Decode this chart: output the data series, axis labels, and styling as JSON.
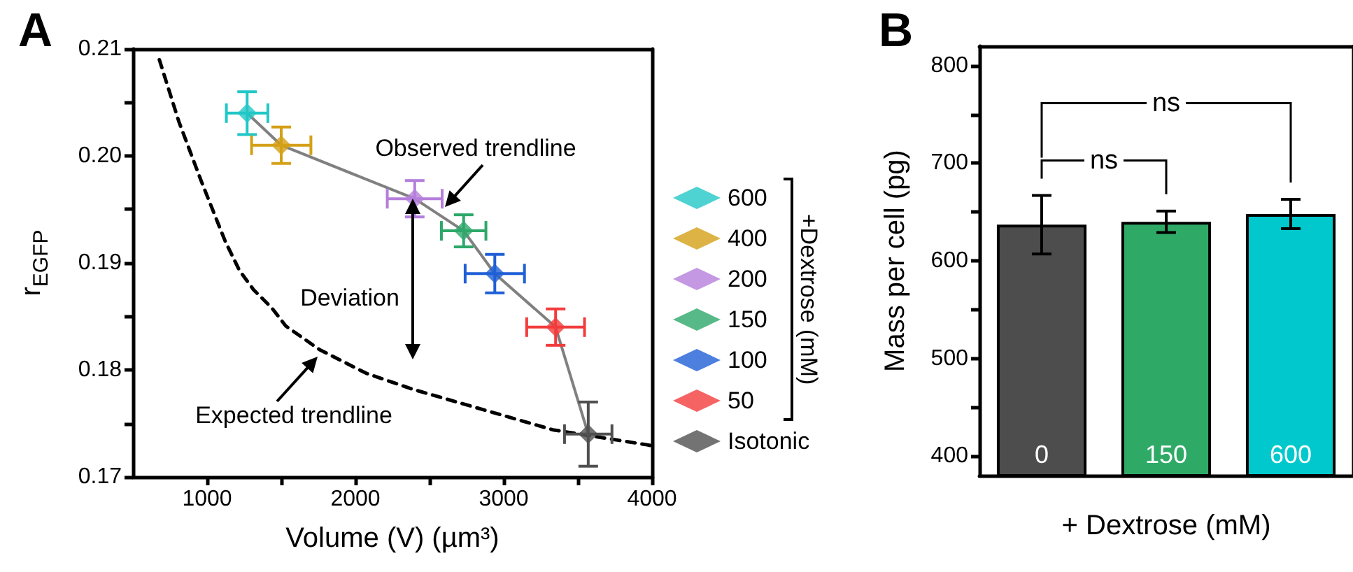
{
  "chart_data": [
    {
      "type": "scatter",
      "title": "A",
      "xlabel": "Volume (V) (µm³)",
      "ylabel": "r$_{EGFP}$",
      "legend_title": "+Dextrose (mM)",
      "legend": "right",
      "xlim": [
        500,
        4000
      ],
      "xticks": [
        1000,
        {
          "value": 1500,
          "label": null
        },
        2000,
        {
          "value": 2500,
          "label": null
        },
        3000,
        {
          "value": 3500,
          "label": null
        },
        4000
      ],
      "ylim": [
        0.17,
        0.21
      ],
      "yticks": [
        0.17,
        {
          "value": 0.175,
          "label": null
        },
        0.18,
        {
          "value": 0.185,
          "label": null
        },
        0.19,
        {
          "value": 0.195,
          "label": null
        },
        {
          "value": 0.2,
          "label": "0.20"
        },
        {
          "value": 0.205,
          "label": null
        },
        0.21
      ],
      "annotations": [
        "Observed trendline",
        "Deviation",
        "Expected trendline"
      ],
      "series": [
        {
          "name": "600",
          "marker": "diamond",
          "color": "#22c7c7",
          "x": [
            1270
          ],
          "values": [
            0.204
          ],
          "errors": [
            0.002
          ],
          "xerrors": [
            140
          ]
        },
        {
          "name": "400",
          "marker": "diamond",
          "color": "#d4a017",
          "x": [
            1500
          ],
          "values": [
            0.201
          ],
          "errors": [
            0.0017
          ],
          "xerrors": [
            200
          ]
        },
        {
          "name": "200",
          "marker": "diamond",
          "color": "#b57edc",
          "x": [
            2400
          ],
          "values": [
            0.196
          ],
          "errors": [
            0.0017
          ],
          "xerrors": [
            185
          ]
        },
        {
          "name": "150",
          "marker": "diamond",
          "color": "#2ea86a",
          "x": [
            2730
          ],
          "values": [
            0.193
          ],
          "errors": [
            0.0015
          ],
          "xerrors": [
            150
          ]
        },
        {
          "name": "100",
          "marker": "diamond",
          "color": "#1f5fd6",
          "x": [
            2940
          ],
          "values": [
            0.189
          ],
          "errors": [
            0.0018
          ],
          "xerrors": [
            200
          ]
        },
        {
          "name": "50",
          "marker": "diamond",
          "color": "#f23c3c",
          "x": [
            3350
          ],
          "values": [
            0.184
          ],
          "errors": [
            0.0017
          ],
          "xerrors": [
            195
          ]
        },
        {
          "name": "Isotonic",
          "marker": "diamond",
          "color": "#505050",
          "x": [
            3570
          ],
          "values": [
            0.174
          ],
          "errors": [
            0.003
          ],
          "xerrors": [
            160
          ]
        },
        {
          "type": "line",
          "marker": "none",
          "color": "#808080",
          "x": [
            1270,
            1500,
            2400,
            2730,
            2940,
            3350,
            3570
          ],
          "values": [
            0.204,
            0.201,
            0.196,
            0.193,
            0.189,
            0.184,
            0.174
          ]
        },
        {
          "type": "line",
          "marker": "none",
          "color": "#000000",
          "line_style": "dashed",
          "x": [
            678,
            810,
            962,
            1123,
            1218,
            1313,
            1436,
            1531,
            1758,
            2071,
            2384,
            2858,
            3332,
            3967,
            4000
          ],
          "values": [
            0.209,
            0.2032,
            0.1976,
            0.192,
            0.1893,
            0.1875,
            0.1858,
            0.1841,
            0.1819,
            0.1797,
            0.1782,
            0.1763,
            0.1744,
            0.173,
            0.1729
          ]
        }
      ]
    },
    {
      "type": "bar",
      "title": "B",
      "xlabel": "+ Dextrose (mM)",
      "ylabel": "Mass per cell (pg)",
      "categories": [
        "0",
        "150",
        "600"
      ],
      "ylim": [
        380,
        820
      ],
      "yticks": [
        400,
        {
          "value": 450,
          "label": null
        },
        500,
        {
          "value": 550,
          "label": null
        },
        600,
        {
          "value": 650,
          "label": null
        },
        700,
        {
          "value": 750,
          "label": null
        },
        800
      ],
      "annotations": [
        "ns",
        "ns"
      ],
      "values": [
        637,
        640,
        648
      ],
      "colors": [
        "#4d4d4d",
        "#2eaa66",
        "#00c8cc"
      ],
      "errors": [
        30,
        11,
        15
      ]
    }
  ]
}
